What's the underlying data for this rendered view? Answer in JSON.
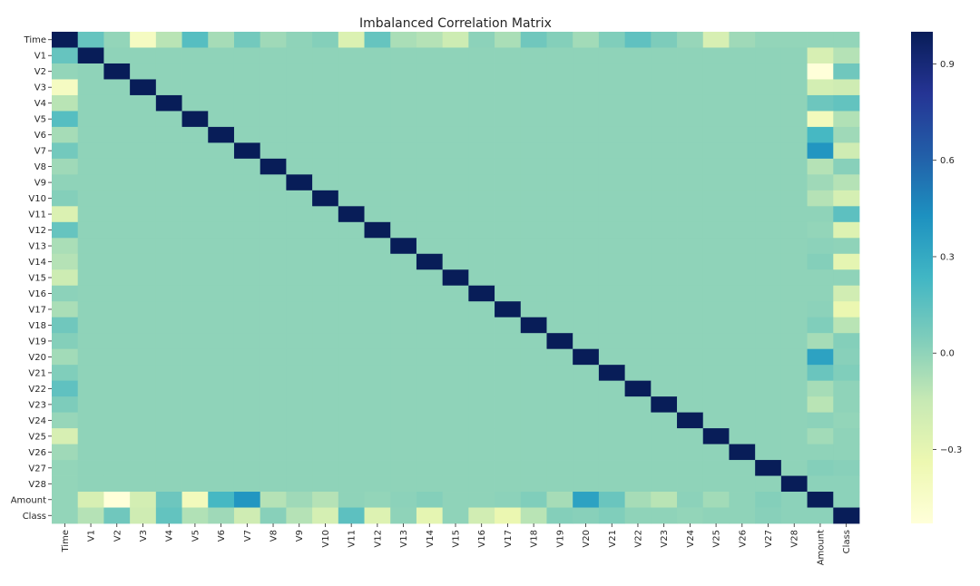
{
  "chart_data": {
    "type": "heatmap",
    "title": "Imbalanced Correlation Matrix",
    "xlabel": "",
    "ylabel": "",
    "labels": [
      "Time",
      "V1",
      "V2",
      "V3",
      "V4",
      "V5",
      "V6",
      "V7",
      "V8",
      "V9",
      "V10",
      "V11",
      "V12",
      "V13",
      "V14",
      "V15",
      "V16",
      "V17",
      "V18",
      "V19",
      "V20",
      "V21",
      "V22",
      "V23",
      "V24",
      "V25",
      "V26",
      "V27",
      "V28",
      "Amount",
      "Class"
    ],
    "colormap": "YlGnBu",
    "vmin": -0.53,
    "vmax": 1.0,
    "colorbar_ticks": [
      0.9,
      0.6,
      0.3,
      0.0,
      -0.3
    ],
    "colorbar_tick_labels": [
      "0.9",
      "0.6",
      "0.3",
      "0.0",
      "−0.3"
    ],
    "time_row": [
      1.0,
      0.12,
      -0.01,
      -0.42,
      -0.11,
      0.17,
      -0.06,
      0.08,
      -0.04,
      0.0,
      0.03,
      -0.25,
      0.12,
      -0.07,
      -0.1,
      -0.18,
      0.01,
      -0.07,
      0.09,
      0.03,
      -0.05,
      0.04,
      0.14,
      0.05,
      -0.02,
      -0.23,
      -0.04,
      -0.01,
      -0.01,
      -0.01,
      -0.01
    ],
    "amount_row": [
      -0.01,
      -0.23,
      -0.53,
      -0.21,
      0.1,
      -0.39,
      0.22,
      0.4,
      -0.1,
      -0.04,
      -0.1,
      0.0,
      -0.01,
      0.01,
      0.03,
      -0.0,
      -0.0,
      0.01,
      0.04,
      -0.06,
      0.34,
      0.11,
      -0.06,
      -0.11,
      0.01,
      -0.05,
      -0.0,
      0.03,
      0.01,
      1.0,
      0.01
    ],
    "class_row": [
      -0.01,
      -0.1,
      0.09,
      -0.19,
      0.13,
      -0.09,
      -0.04,
      -0.19,
      0.02,
      -0.1,
      -0.22,
      0.15,
      -0.26,
      -0.0,
      -0.3,
      -0.0,
      -0.2,
      -0.33,
      -0.11,
      0.03,
      0.02,
      0.04,
      0.0,
      -0.0,
      -0.01,
      0.0,
      0.0,
      0.02,
      0.01,
      0.01,
      1.0
    ]
  }
}
